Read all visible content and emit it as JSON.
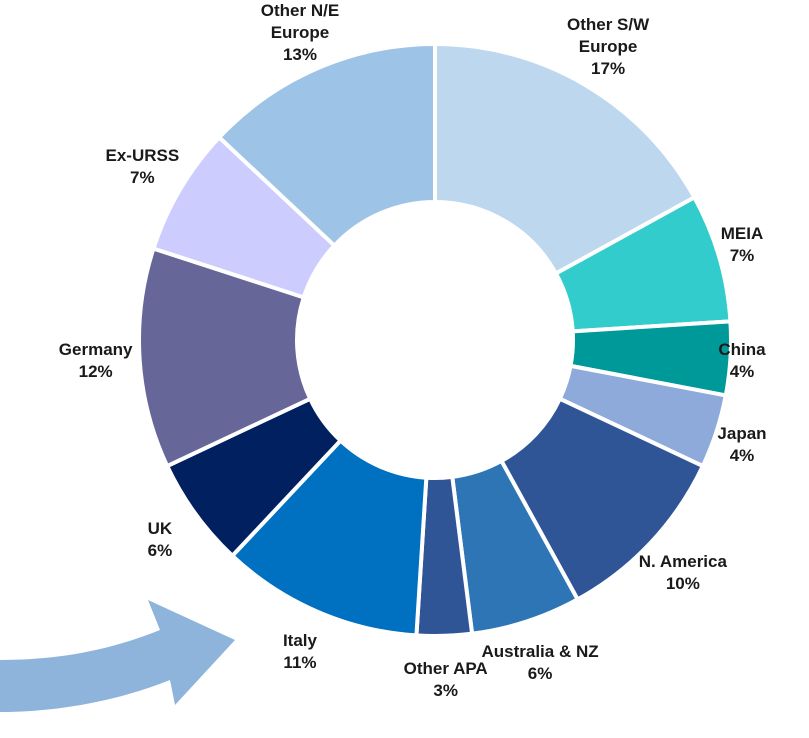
{
  "chart_data": {
    "type": "donut",
    "categories": [
      "Other S/W Europe",
      "MEIA",
      "China",
      "Japan",
      "N. America",
      "Australia & NZ",
      "Other APA",
      "Italy",
      "UK",
      "Germany",
      "Ex-URSS",
      "Other N/E Europe"
    ],
    "values": [
      17,
      7,
      4,
      4,
      10,
      6,
      3,
      11,
      6,
      12,
      7,
      13
    ],
    "value_labels": [
      "17%",
      "7%",
      "4%",
      "4%",
      "10%",
      "6%",
      "3%",
      "11%",
      "6%",
      "12%",
      "7%",
      "13%"
    ],
    "colors": [
      "#bdd7ee",
      "#33cccc",
      "#009999",
      "#8eaadb",
      "#2f5597",
      "#2e75b6",
      "#2f5597",
      "#0070c0",
      "#002060",
      "#666699",
      "#ccccff",
      "#9dc3e6"
    ]
  }
}
